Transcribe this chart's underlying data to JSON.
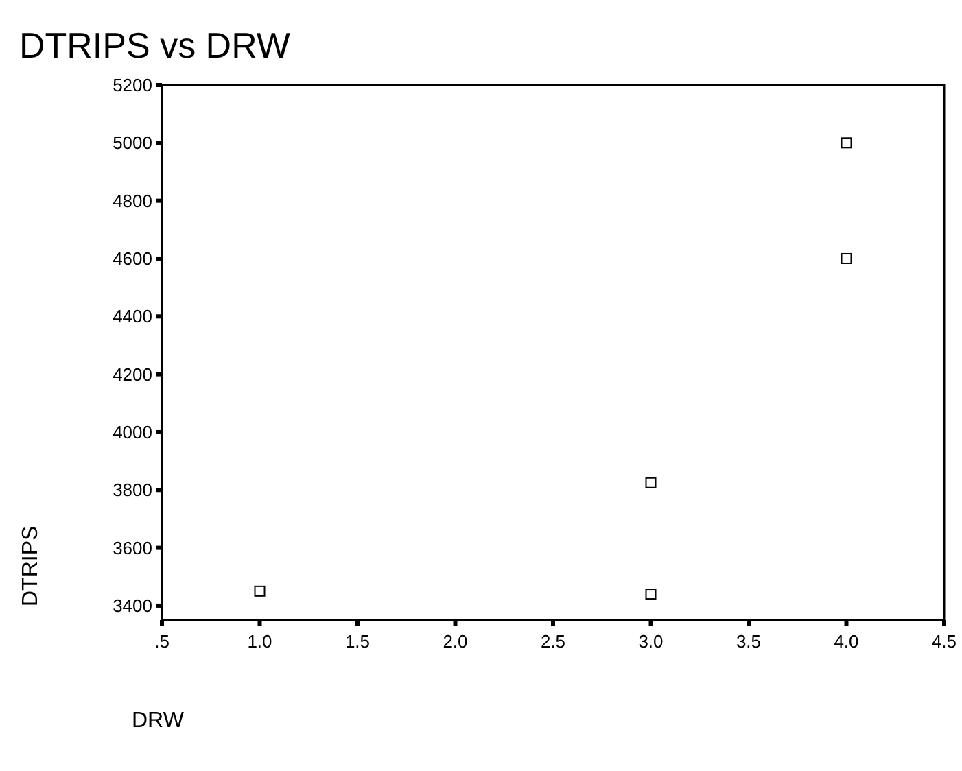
{
  "chart_data": {
    "type": "scatter",
    "title": "DTRIPS vs DRW",
    "xlabel": "DRW",
    "ylabel": "DTRIPS",
    "x": [
      1.0,
      3.0,
      3.0,
      4.0,
      4.0
    ],
    "values": [
      3450,
      3825,
      3440,
      4600,
      5000
    ],
    "color": "#000000",
    "marker": "square",
    "xlim": [
      0.5,
      4.5
    ],
    "xticks": [
      {
        "value": 0.5,
        "label": ".5"
      },
      {
        "value": 1,
        "label": "1.0"
      },
      {
        "value": 1.5,
        "label": "1.5"
      },
      {
        "value": 2,
        "label": "2.0"
      },
      {
        "value": 2.5,
        "label": "2.5"
      },
      {
        "value": 3,
        "label": "3.0"
      },
      {
        "value": 3.5,
        "label": "3.5"
      },
      {
        "value": 4,
        "label": "4.0"
      },
      {
        "value": 4.5,
        "label": "4.5"
      }
    ],
    "ylim": [
      3350,
      5200
    ],
    "yticks": [
      3400,
      3600,
      3800,
      4000,
      4200,
      4400,
      4600,
      4800,
      5000,
      5200
    ],
    "grid": false,
    "legend": false
  }
}
